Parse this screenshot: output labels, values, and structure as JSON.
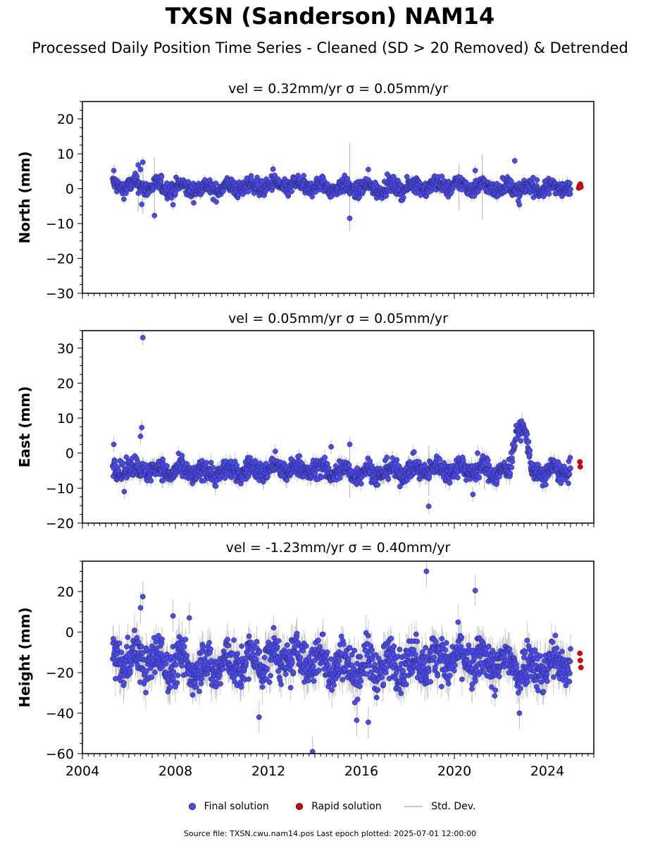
{
  "title": "TXSN (Sanderson) NAM14",
  "subtitle": "Processed Daily Position Time Series - Cleaned (SD > 20 Removed) & Detrended",
  "legend": {
    "final": "Final solution",
    "rapid": "Rapid solution",
    "std": "Std. Dev."
  },
  "source_note": "Source file: TXSN.cwu.nam14.pos  Last epoch plotted: 2025-07-01 12:00:00",
  "colors": {
    "final": "#4a4af0",
    "rapid": "#e00000",
    "errorbar": "#bdbdbd",
    "edge": "#222244"
  },
  "chart_data": [
    {
      "type": "scatter",
      "title": "vel = 0.32mm/yr   σ = 0.05mm/yr",
      "ylabel": "North (mm)",
      "xlabel": "",
      "xlim": [
        2004.0,
        2026.0
      ],
      "ylim": [
        -30,
        25
      ],
      "yticks": [
        -30,
        -20,
        -10,
        0,
        10,
        20
      ],
      "xticks": [
        2004,
        2008,
        2012,
        2016,
        2020,
        2024
      ],
      "xtick_labels": [],
      "series": [
        {
          "name": "Final solution",
          "x_start": 2005.3,
          "x_end": 2025.0,
          "center": 0.5,
          "spread": 1.6,
          "std": 1.3,
          "outliers": [
            [
              2005.35,
              5.2
            ],
            [
              2006.4,
              6.8
            ],
            [
              2006.6,
              7.6
            ],
            [
              2006.5,
              5.5
            ],
            [
              2006.55,
              -4.5
            ],
            [
              2007.1,
              -7.7
            ],
            [
              2007.9,
              -4.6
            ],
            [
              2012.2,
              5.6
            ],
            [
              2015.5,
              -8.5
            ],
            [
              2016.3,
              5.5
            ],
            [
              2020.9,
              5.2
            ],
            [
              2022.6,
              8.0
            ],
            [
              2022.8,
              -4.6
            ]
          ],
          "std_outliers": [
            [
              2006.4,
              13
            ],
            [
              2006.6,
              14
            ],
            [
              2007.1,
              15.5
            ],
            [
              2015.5,
              23
            ],
            [
              2020.2,
              12
            ],
            [
              2021.2,
              17
            ]
          ]
        },
        {
          "name": "Rapid solution",
          "points": [
            [
              2025.35,
              0.2
            ],
            [
              2025.38,
              0.8
            ],
            [
              2025.42,
              1.3
            ],
            [
              2025.45,
              0.5
            ]
          ]
        }
      ]
    },
    {
      "type": "scatter",
      "title": "vel = 0.05mm/yr   σ = 0.05mm/yr",
      "ylabel": "East (mm)",
      "xlabel": "",
      "xlim": [
        2004.0,
        2026.0
      ],
      "ylim": [
        -20,
        35
      ],
      "yticks": [
        -20,
        -10,
        0,
        10,
        20,
        30
      ],
      "xticks": [
        2004,
        2008,
        2012,
        2016,
        2020,
        2024
      ],
      "xtick_labels": [],
      "series": [
        {
          "name": "Final solution",
          "x_start": 2005.3,
          "x_end": 2025.0,
          "center": -5.0,
          "spread": 2.0,
          "std": 1.8,
          "outliers": [
            [
              2005.35,
              2.5
            ],
            [
              2006.6,
              33.0
            ],
            [
              2006.55,
              7.3
            ],
            [
              2006.5,
              4.8
            ],
            [
              2005.8,
              -11.0
            ],
            [
              2012.3,
              0.5
            ],
            [
              2014.7,
              1.8
            ],
            [
              2015.5,
              2.5
            ],
            [
              2018.9,
              -15.2
            ],
            [
              2020.8,
              -11.8
            ],
            [
              2021.0,
              0.0
            ]
          ],
          "event": {
            "x_start": 2022.4,
            "x_end": 2023.3,
            "peak_x": 2022.85,
            "peak": 11.0
          },
          "std_outliers": [
            [
              2006.6,
              5
            ],
            [
              2015.5,
              14
            ],
            [
              2018.9,
              13
            ],
            [
              2021.3,
              10
            ]
          ]
        },
        {
          "name": "Rapid solution",
          "points": [
            [
              2025.4,
              -2.5
            ],
            [
              2025.42,
              -3.9
            ]
          ]
        }
      ]
    },
    {
      "type": "scatter",
      "title": "vel = -1.23mm/yr   σ = 0.40mm/yr",
      "ylabel": "Height (mm)",
      "xlabel": "",
      "xlim": [
        2004.0,
        2026.0
      ],
      "ylim": [
        -60,
        35
      ],
      "yticks": [
        -60,
        -40,
        -20,
        0,
        20
      ],
      "xticks": [
        2004,
        2008,
        2012,
        2016,
        2020,
        2024
      ],
      "xtick_labels": [
        "2004",
        "2008",
        "2012",
        "2016",
        "2020",
        "2024"
      ],
      "series": [
        {
          "name": "Final solution",
          "x_start": 2005.3,
          "x_end": 2025.0,
          "center": -15.0,
          "spread": 7.5,
          "std": 6.5,
          "outliers": [
            [
              2006.6,
              17.5
            ],
            [
              2006.5,
              12.0
            ],
            [
              2011.6,
              -42.0
            ],
            [
              2013.9,
              -59.0
            ],
            [
              2015.8,
              -43.5
            ],
            [
              2016.3,
              -44.5
            ],
            [
              2018.8,
              30.0
            ],
            [
              2020.9,
              20.5
            ],
            [
              2022.8,
              -40.0
            ],
            [
              2007.9,
              8.0
            ],
            [
              2008.6,
              7.0
            ]
          ],
          "std_outliers": [
            [
              2006.6,
              15
            ],
            [
              2013.9,
              20
            ],
            [
              2018.8,
              18
            ],
            [
              2020.9,
              15
            ]
          ]
        },
        {
          "name": "Rapid solution",
          "points": [
            [
              2025.4,
              -10.5
            ],
            [
              2025.42,
              -14.0
            ],
            [
              2025.45,
              -17.5
            ]
          ]
        }
      ]
    }
  ]
}
